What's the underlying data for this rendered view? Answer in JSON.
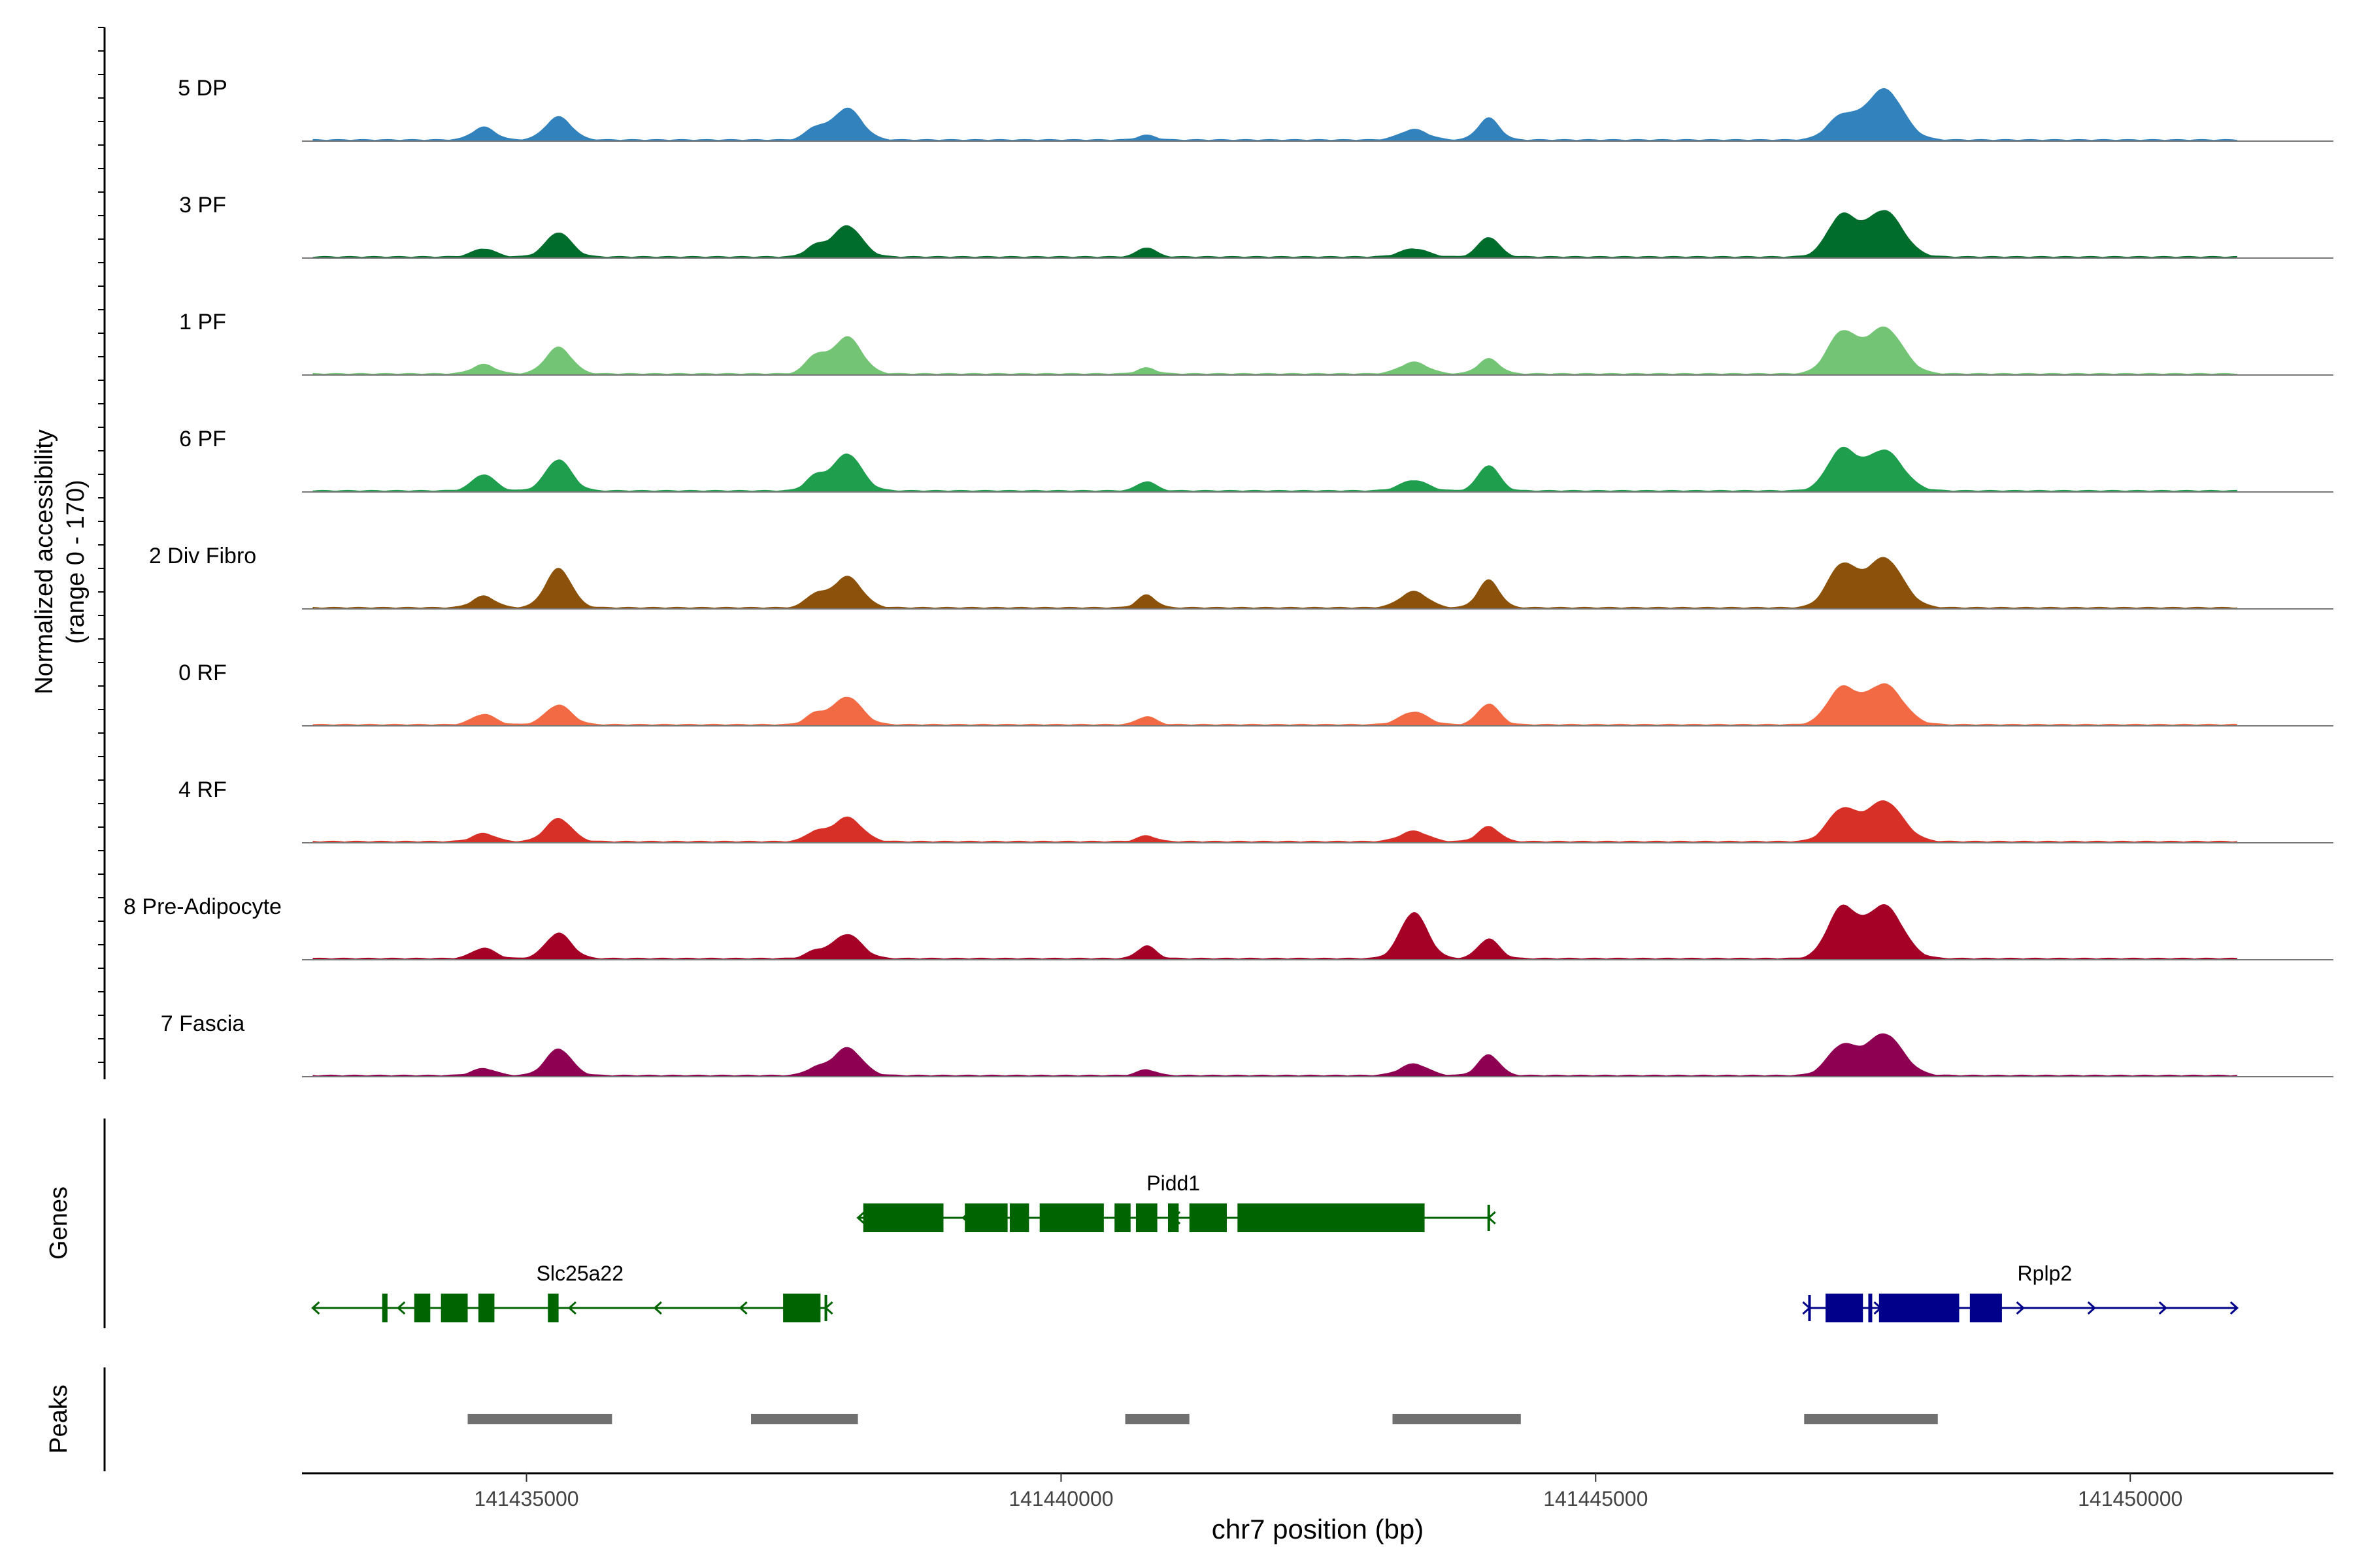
{
  "chart_data": {
    "type": "area",
    "title": "",
    "xlabel": "chr7 position (bp)",
    "ylabel": "Normalized accessibility",
    "ylabel_range": "(range 0 - 170)",
    "ylim": [
      0,
      170
    ],
    "xlim": [
      141432900,
      141451900
    ],
    "x_ticks": [
      141435000,
      141440000,
      141445000,
      141450000
    ],
    "x_tick_labels": [
      "141435000",
      "141440000",
      "141445000",
      "141450000"
    ],
    "x_domain": [
      141432900,
      141451900
    ],
    "track_colors": {
      "5 DP": "#3182bd",
      "3 PF": "#006d2c",
      "1 PF": "#74c476",
      "6 PF": "#1f9e4e",
      "2 Div Fibro": "#8c510a",
      "0 RF": "#f26a43",
      "4 RF": "#d73027",
      "8 Pre-Adipocyte": "#a50026",
      "7 Fascia": "#8e0152"
    },
    "peak_positions": [
      141434600,
      141435300,
      141437700,
      141438000,
      141440800,
      141443300,
      141444000,
      141447300,
      141447700
    ],
    "series": [
      {
        "name": "5 DP",
        "values": [
          22,
          40,
          20,
          55,
          8,
          18,
          38,
          40,
          88
        ]
      },
      {
        "name": "3 PF",
        "values": [
          14,
          42,
          18,
          54,
          16,
          14,
          34,
          70,
          80
        ]
      },
      {
        "name": "1 PF",
        "values": [
          16,
          46,
          30,
          64,
          10,
          20,
          26,
          70,
          80
        ]
      },
      {
        "name": "6 PF",
        "values": [
          28,
          54,
          24,
          64,
          16,
          18,
          44,
          70,
          70
        ]
      },
      {
        "name": "2 Div Fibro",
        "values": [
          20,
          68,
          22,
          54,
          22,
          28,
          48,
          72,
          86
        ]
      },
      {
        "name": "0 RF",
        "values": [
          18,
          34,
          18,
          48,
          14,
          22,
          36,
          62,
          70
        ]
      },
      {
        "name": "4 RF",
        "values": [
          14,
          40,
          16,
          42,
          10,
          18,
          26,
          54,
          70
        ]
      },
      {
        "name": "8 Pre-Adipocyte",
        "values": [
          18,
          44,
          12,
          42,
          22,
          80,
          34,
          86,
          92
        ]
      },
      {
        "name": "7 Fascia",
        "values": [
          12,
          46,
          12,
          48,
          10,
          20,
          36,
          50,
          72
        ]
      }
    ],
    "genes": [
      {
        "name": "Pidd1",
        "start": 141438100,
        "end": 141444000,
        "strand": "-",
        "color": "#006400",
        "exons": [
          [
            141438150,
            141438900
          ],
          [
            141439100,
            141439500
          ],
          [
            141439520,
            141439700
          ],
          [
            141439800,
            141440400
          ],
          [
            141440500,
            141440650
          ],
          [
            141440700,
            141440900
          ],
          [
            141441000,
            141441100
          ],
          [
            141441200,
            141441550
          ],
          [
            141441650,
            141443400
          ]
        ]
      },
      {
        "name": "Slc25a22",
        "start": 141433000,
        "end": 141437800,
        "strand": "-",
        "color": "#006400",
        "exons": [
          [
            141433650,
            141433700
          ],
          [
            141433950,
            141434100
          ],
          [
            141434200,
            141434450
          ],
          [
            141434550,
            141434700
          ],
          [
            141435200,
            141435300
          ],
          [
            141437400,
            141437750
          ]
        ]
      },
      {
        "name": "Rplp2",
        "start": 141447000,
        "end": 141451000,
        "strand": "+",
        "color": "#00008b",
        "exons": [
          [
            141447150,
            141447500
          ],
          [
            141447550,
            141447580
          ],
          [
            141447650,
            141448400
          ],
          [
            141448500,
            141448800
          ]
        ]
      }
    ],
    "peaks": [
      [
        141434450,
        141435800
      ],
      [
        141437100,
        141438100
      ],
      [
        141440600,
        141441200
      ],
      [
        141443100,
        141444300
      ],
      [
        141446950,
        141448200
      ]
    ],
    "panel_labels": {
      "genes": "Genes",
      "peaks": "Peaks"
    }
  }
}
